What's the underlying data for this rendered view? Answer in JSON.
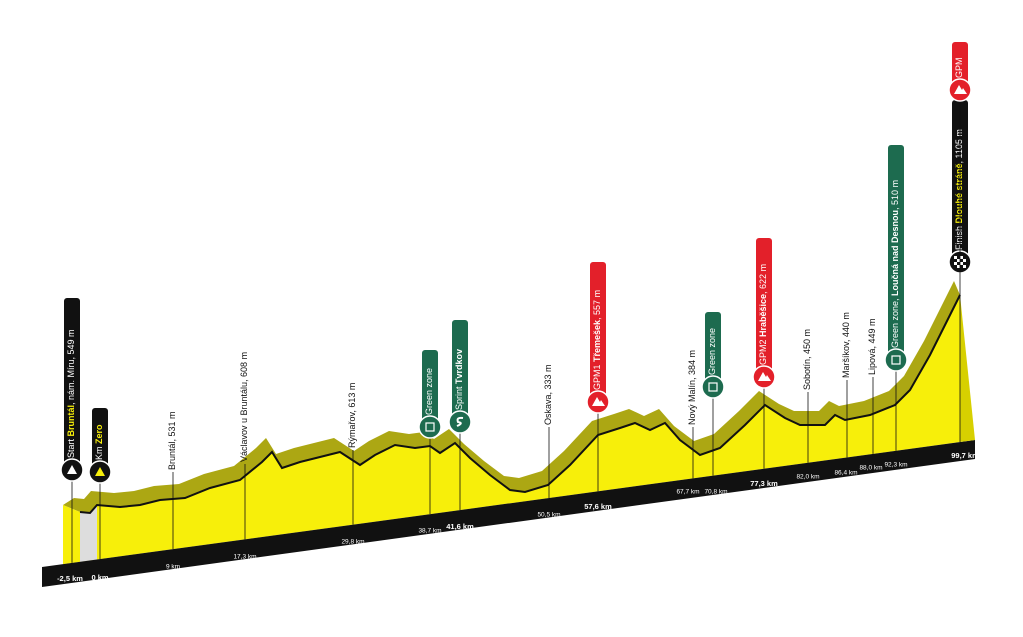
{
  "markers": [
    {
      "pre": "Start ",
      "bold": "Bruntál",
      "post": ", nám. Míru, 549 m"
    },
    {
      "pre": "Km ",
      "bold": "Zero"
    },
    {
      "pre": "Bruntál, 531 m"
    },
    {
      "pre": "Václavov u Bruntálu, 608 m"
    },
    {
      "pre": "Rýmařov, 613 m"
    },
    {
      "pre": "Green zone"
    },
    {
      "pre": "Sprint ",
      "bold": "Tvrdkov"
    },
    {
      "pre": "Oskava, 333 m"
    },
    {
      "pre": "GPM1 ",
      "bold": "Třemešek",
      "post": ", 557 m"
    },
    {
      "pre": "Nový Malín, 384 m"
    },
    {
      "pre": "Green zone"
    },
    {
      "pre": "GPM2 ",
      "bold": "Hraběšice",
      "post": ", 622 m"
    },
    {
      "pre": "Sobotín, 450 m"
    },
    {
      "pre": "Maršíkov, 440 m"
    },
    {
      "pre": "Lipová, 449 m"
    },
    {
      "pre": "Green zone, ",
      "bold": "Loučná nad Desnou",
      "post": ", 510 m"
    },
    {
      "pre": "Finish ",
      "bold": "Dlouhé stráně",
      "post": ", 1105 m"
    },
    {
      "pre": "GPM"
    }
  ],
  "km": [
    "-2,5 km",
    "0 km",
    "9 km",
    "17,3 km",
    "29,8 km",
    "38,7 km",
    "41,6 km",
    "50,5 km",
    "57,6 km",
    "67,7 km",
    "70,8 km",
    "77,3 km",
    "82,0 km",
    "86,4 km",
    "88,0 km",
    "92,3 km",
    "99,7 km"
  ]
}
